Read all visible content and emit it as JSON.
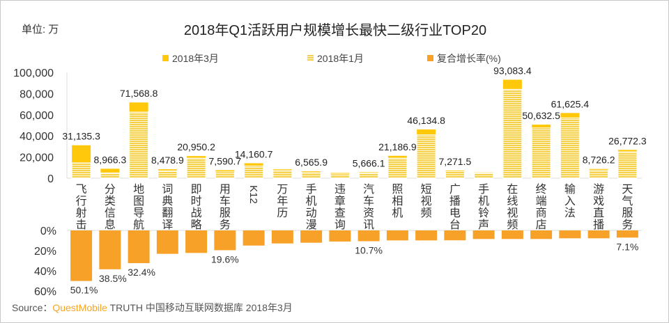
{
  "chart_data": {
    "type": "bar",
    "title": "2018年Q1活跃用户规模增长最快二级行业TOP20",
    "unit_label": "单位: 万",
    "legend": [
      "2018年3月",
      "2018年1月",
      "复合增长率(%)"
    ],
    "legend_position": "top",
    "categories": [
      "飞行射击",
      "分类信息",
      "地图导航",
      "词典翻译",
      "即时战略",
      "用车服务",
      "K12",
      "万年历",
      "手机动漫",
      "违章查询",
      "汽车资讯",
      "照相机",
      "短视频",
      "广播电台",
      "手机铃声",
      "在线视频",
      "终端商店",
      "输入法",
      "游戏直播",
      "天气服务"
    ],
    "series": [
      {
        "name": "2018年3月",
        "values": [
          31135.3,
          8966.3,
          71568.8,
          8478.9,
          20950.2,
          7590.7,
          14160.7,
          8500,
          6565.9,
          5000,
          5666.1,
          21186.9,
          46134.8,
          7271.5,
          5500,
          93083.4,
          50632.5,
          61625.4,
          8726.2,
          26772.3
        ],
        "data_labels": [
          "31,135.3",
          "8,966.3",
          "71,568.8",
          "8,478.9",
          "20,950.2",
          "7,590.7",
          "14,160.7",
          "",
          "6,565.9",
          "",
          "5,666.1",
          "21,186.9",
          "46,134.8",
          "7,271.5",
          "",
          "93,083.4",
          "50,632.5",
          "61,625.4",
          "8,726.2",
          "26,772.3"
        ]
      },
      {
        "name": "2018年1月",
        "values": [
          14500,
          5000,
          62500,
          7000,
          19000,
          6000,
          11500,
          7500,
          5500,
          4000,
          4800,
          19000,
          41000,
          6300,
          5000,
          84000,
          47500,
          57000,
          7600,
          25000
        ]
      },
      {
        "name": "复合增长率(%)",
        "values": [
          50.1,
          38.5,
          32.4,
          23.2,
          22.3,
          19.6,
          15.0,
          12.9,
          12.2,
          11.0,
          10.7,
          9.9,
          9.9,
          9.8,
          8.5,
          8.5,
          8.5,
          7.8,
          7.8,
          7.1
        ],
        "data_labels": [
          "50.1%",
          "38.5%",
          "32.4%",
          "",
          "",
          "19.6%",
          "",
          "",
          "",
          "",
          "10.7%",
          "",
          "",
          "",
          "",
          "",
          "",
          "",
          "",
          "7.1%"
        ]
      }
    ],
    "y_axis_top": {
      "range": [
        0,
        100000
      ],
      "ticks": [
        "0",
        "20,000",
        "40,000",
        "60,000",
        "80,000",
        "100,000"
      ]
    },
    "y_axis_bottom": {
      "range": [
        0,
        60
      ],
      "reversed": true,
      "ticks": [
        "0%",
        "20%",
        "40%",
        "60%"
      ]
    },
    "grid": false,
    "colors": {
      "mar": "#FFC80A",
      "jan": "#F5D04A",
      "growth": "#F7A128"
    }
  },
  "source": {
    "prefix": "Source：",
    "brand": "QuestMobile",
    "rest": "TRUTH 中国移动互联网数据库 2018年3月"
  }
}
